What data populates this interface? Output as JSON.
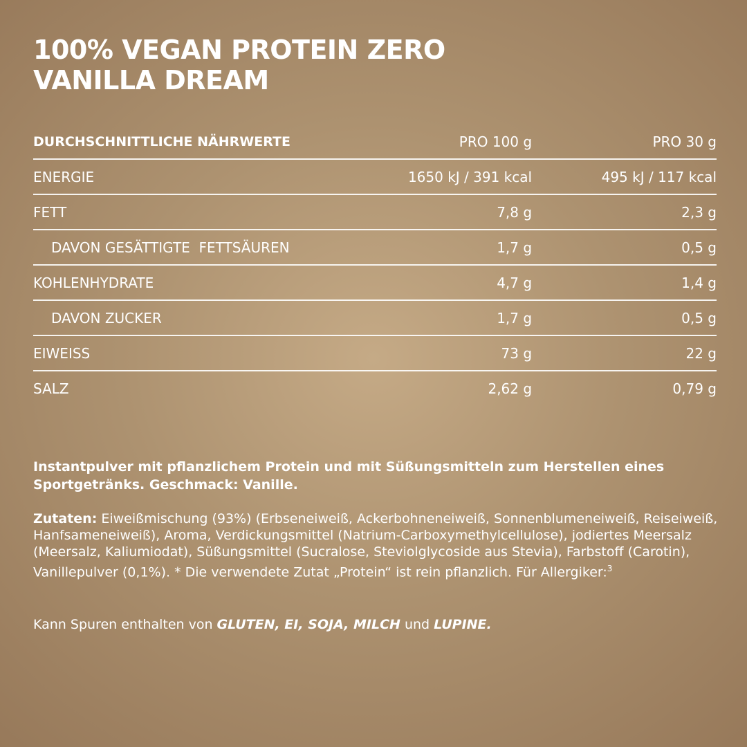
{
  "product": {
    "title_line1": "100% VEGAN PROTEIN ZERO",
    "title_line2": "VANILLA DREAM"
  },
  "nutrition": {
    "header": {
      "label": "DURCHSCHNITTLICHE NÄHRWERTE",
      "per100": "PRO 100 g",
      "per30": "PRO 30 g"
    },
    "rows": [
      {
        "label": "ENERGIE",
        "per100": "1650 kJ / 391 kcal",
        "per30": "495 kJ / 117 kcal"
      },
      {
        "label": "FETT",
        "per100": "7,8 g",
        "per30": "2,3 g"
      },
      {
        "label": "DAVON GESÄTTIGTE  FETTSÄUREN",
        "per100": "1,7 g",
        "per30": "0,5 g"
      },
      {
        "label": "KOHLENHYDRATE",
        "per100": "4,7 g",
        "per30": "1,4 g"
      },
      {
        "label": "DAVON ZUCKER",
        "per100": "1,7 g",
        "per30": "0,5 g"
      },
      {
        "label": "EIWEISS",
        "per100": "73 g",
        "per30": "22 g"
      },
      {
        "label": "SALZ",
        "per100": "2,62 g",
        "per30": "0,79 g"
      }
    ]
  },
  "description": "Instantpulver mit pflanzlichem Protein und mit Süßungsmitteln zum Herstellen eines Sportgetränks. Geschmack: Vanille.",
  "ingredients": {
    "label": "Zutaten:",
    "text": " Eiweißmischung (93%) (Erbseneiweiß, Ackerbohneneiweiß, Sonnenblumeneiweiß, Reiseiweiß, Hanfsameneiweiß), Aroma, Verdickungsmittel (Natrium-Carboxymethylcellulose), jodiertes Meersalz (Meersalz, Kaliumiodat), Süßungsmittel (Sucralose, Steviolglycoside aus Stevia), Farbstoff (Carotin), Vanillepulver (0,1%). * Die verwendete Zutat „Protein“ ist rein pflanzlich. Für Allergiker:",
    "footnote": "3"
  },
  "traces": {
    "intro": "Kann Spuren enthalten von ",
    "allergen1": "GLUTEN, EI, SOJA, MILCH",
    "connector": " und ",
    "allergen2": "LUPINE."
  }
}
